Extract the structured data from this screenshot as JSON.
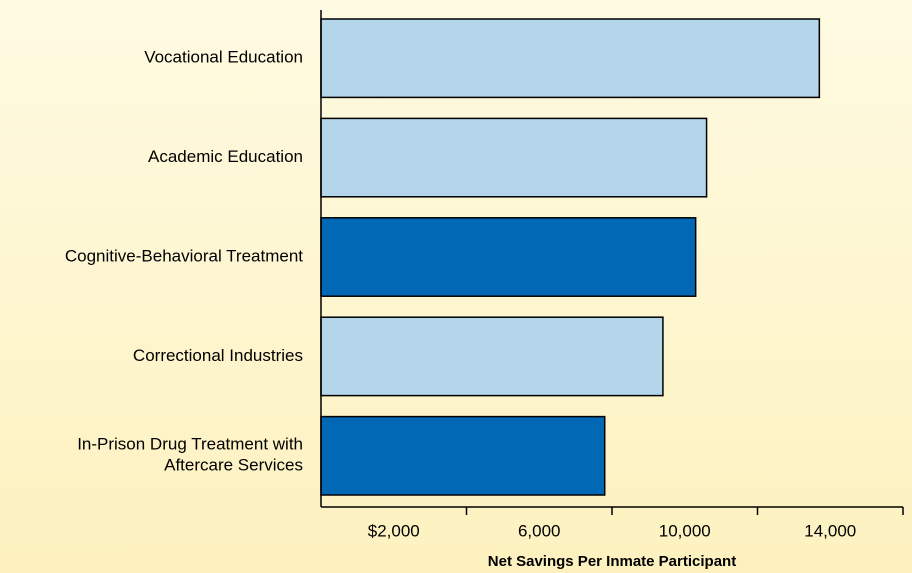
{
  "chart_data": {
    "type": "barh",
    "xlabel": "Net Savings Per Inmate Participant",
    "categories": [
      "Vocational Education",
      "Academic Education",
      "Cognitive-Behavioral Treatment",
      "Correctional Industries",
      "In-Prison Drug Treatment with\nAftercare Services"
    ],
    "values": [
      13700,
      10600,
      10300,
      9400,
      7800
    ],
    "colors": [
      "#b5d5ea",
      "#b5d5ea",
      "#0068b4",
      "#b5d5ea",
      "#0068b4"
    ],
    "xlim": [
      0,
      16000
    ],
    "xticks": [
      {
        "value": 2000,
        "label": "$2,000"
      },
      {
        "value": 6000,
        "label": "6,000"
      },
      {
        "value": 10000,
        "label": "10,000"
      },
      {
        "value": 14000,
        "label": "14,000"
      }
    ],
    "minor_xticks": [
      4000,
      8000,
      12000,
      16000
    ],
    "grid": false
  }
}
